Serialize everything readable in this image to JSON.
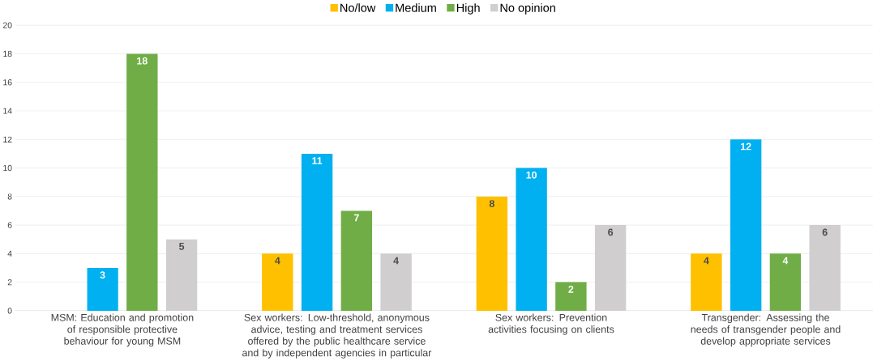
{
  "chart_data": {
    "type": "bar",
    "categories": [
      "MSM: Education and promotion of responsible protective behaviour for young MSM",
      "Sex workers: Low-threshold, anonymous advice, testing and treatment services offered by the public healthcare service and by independent agencies in particular",
      "Sex workers: Prevention activities focusing on clients",
      "Transgender: Assessing the needs of transgender people and develop appropriate services"
    ],
    "series": [
      {
        "name": "No/low",
        "color": "#ffc000",
        "values": [
          null,
          4,
          8,
          4
        ]
      },
      {
        "name": "Medium",
        "color": "#00b0f0",
        "values": [
          3,
          11,
          10,
          12
        ]
      },
      {
        "name": "High",
        "color": "#70ad47",
        "values": [
          18,
          7,
          2,
          4
        ]
      },
      {
        "name": "No opinion",
        "color": "#d0cece",
        "values": [
          5,
          4,
          6,
          6
        ]
      }
    ],
    "ylim": [
      0,
      20
    ],
    "yticks": [
      0,
      2,
      4,
      6,
      8,
      10,
      12,
      14,
      16,
      18,
      20
    ],
    "grid": "y",
    "legend": "top",
    "data_labels": true
  }
}
